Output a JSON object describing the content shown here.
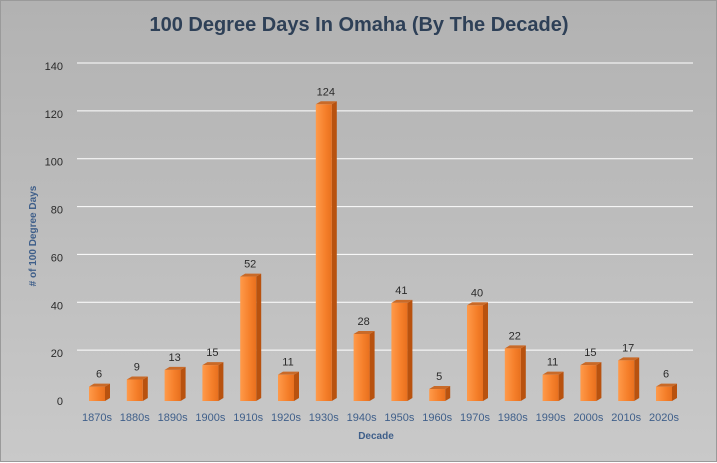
{
  "chart_data": {
    "type": "bar",
    "title": "100 Degree Days In Omaha (By The Decade)",
    "xlabel": "Decade",
    "ylabel": "# of 100 Degree Days",
    "categories": [
      "1870s",
      "1880s",
      "1890s",
      "1900s",
      "1910s",
      "1920s",
      "1930s",
      "1940s",
      "1950s",
      "1960s",
      "1970s",
      "1980s",
      "1990s",
      "2000s",
      "2010s",
      "2020s"
    ],
    "values": [
      6,
      9,
      13,
      15,
      52,
      11,
      124,
      28,
      41,
      5,
      40,
      22,
      11,
      15,
      17,
      6
    ],
    "ylim": [
      0,
      140
    ],
    "yticks": [
      0,
      20,
      40,
      60,
      80,
      100,
      120,
      140
    ],
    "grid": true,
    "legend": "none",
    "colors": {
      "bar_front": "#f57f2a",
      "bar_side": "#b8520f",
      "bar_top": "#c96a28",
      "gridline": "#ffffff"
    }
  }
}
